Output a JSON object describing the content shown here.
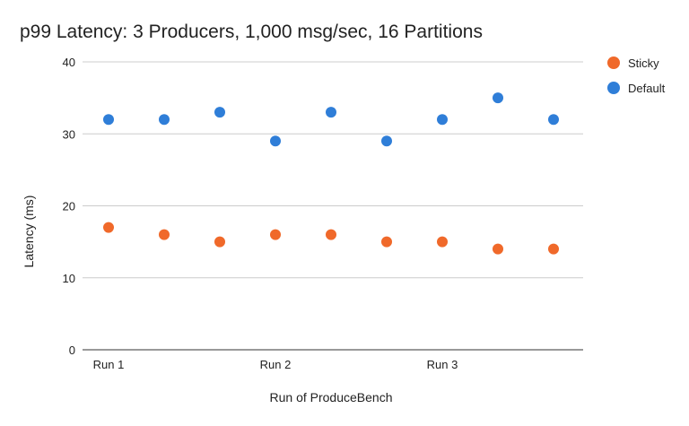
{
  "chart_data": {
    "type": "scatter",
    "title": "p99 Latency: 3 Producers, 1,000 msg/sec, 16 Partitions",
    "xlabel": "Run of ProduceBench",
    "ylabel": "Latency (ms)",
    "ylim": [
      0,
      40
    ],
    "yticks": [
      "0",
      "10",
      "20",
      "30",
      "40"
    ],
    "x_tick_labels": [
      "Run 1",
      "",
      "",
      "Run 2",
      "",
      "",
      "Run 3",
      "",
      ""
    ],
    "grid": true,
    "legend_position": "right",
    "series": [
      {
        "name": "Sticky",
        "color": "#f0692a",
        "values": [
          17,
          16,
          15,
          16,
          16,
          15,
          15,
          14,
          14
        ]
      },
      {
        "name": "Default",
        "color": "#2f7ed8",
        "values": [
          32,
          32,
          33,
          29,
          33,
          29,
          32,
          35,
          32
        ]
      }
    ]
  }
}
